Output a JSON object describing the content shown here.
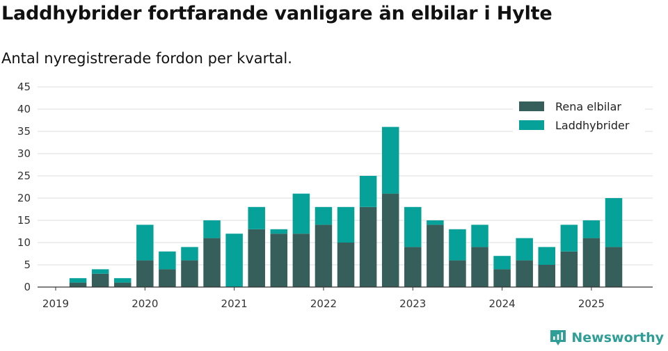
{
  "title": "Laddhybrider fortfarande vanligare än elbilar i Hylte",
  "subtitle": "Antal nyregistrerade fordon per kvartal.",
  "brand": "Newsworthy",
  "colors": {
    "elbil": "#365e5a",
    "hybrid": "#06a29a",
    "grid": "#dddddd",
    "axis": "#333333"
  },
  "chart_data": {
    "type": "bar",
    "stacked": true,
    "categories": [
      "2019 Q1",
      "2019 Q2",
      "2019 Q3",
      "2019 Q4",
      "2020 Q1",
      "2020 Q2",
      "2020 Q3",
      "2020 Q4",
      "2021 Q1",
      "2021 Q2",
      "2021 Q3",
      "2021 Q4",
      "2022 Q1",
      "2022 Q2",
      "2022 Q3",
      "2022 Q4",
      "2023 Q1",
      "2023 Q2",
      "2023 Q3",
      "2023 Q4",
      "2024 Q1",
      "2024 Q2",
      "2024 Q3",
      "2024 Q4",
      "2025 Q1",
      "2025 Q2"
    ],
    "x_ticks": [
      "2019",
      "2020",
      "2021",
      "2022",
      "2023",
      "2024",
      "2025"
    ],
    "series": [
      {
        "name": "Rena elbilar",
        "values": [
          0,
          1,
          3,
          1,
          6,
          4,
          6,
          11,
          0,
          13,
          12,
          12,
          14,
          10,
          18,
          21,
          9,
          14,
          6,
          9,
          4,
          6,
          5,
          8,
          11,
          9
        ]
      },
      {
        "name": "Laddhybrider",
        "values": [
          0,
          1,
          1,
          1,
          8,
          4,
          3,
          4,
          12,
          5,
          1,
          9,
          4,
          8,
          7,
          15,
          9,
          1,
          7,
          5,
          3,
          5,
          4,
          6,
          4,
          11
        ]
      }
    ],
    "ylim": [
      0,
      45
    ],
    "y_ticks": [
      0,
      5,
      10,
      15,
      20,
      25,
      30,
      35,
      40,
      45
    ],
    "grid": true,
    "legend": "top-right"
  }
}
